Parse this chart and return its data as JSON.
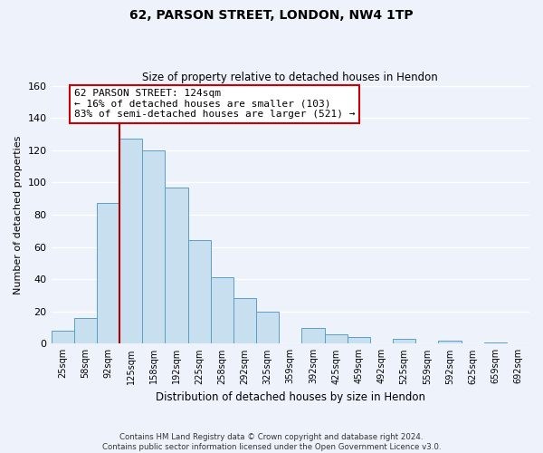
{
  "title": "62, PARSON STREET, LONDON, NW4 1TP",
  "subtitle": "Size of property relative to detached houses in Hendon",
  "xlabel": "Distribution of detached houses by size in Hendon",
  "ylabel": "Number of detached properties",
  "bar_labels": [
    "25sqm",
    "58sqm",
    "92sqm",
    "125sqm",
    "158sqm",
    "192sqm",
    "225sqm",
    "258sqm",
    "292sqm",
    "325sqm",
    "359sqm",
    "392sqm",
    "425sqm",
    "459sqm",
    "492sqm",
    "525sqm",
    "559sqm",
    "592sqm",
    "625sqm",
    "659sqm",
    "692sqm"
  ],
  "bar_values": [
    8,
    16,
    87,
    127,
    120,
    97,
    64,
    41,
    28,
    20,
    0,
    10,
    6,
    4,
    0,
    3,
    0,
    2,
    0,
    1,
    0
  ],
  "bar_color": "#c8dff0",
  "bar_edge_color": "#5a9ec9",
  "ylim": [
    0,
    160
  ],
  "yticks": [
    0,
    20,
    40,
    60,
    80,
    100,
    120,
    140,
    160
  ],
  "property_line_color": "#aa0000",
  "annotation_text": "62 PARSON STREET: 124sqm\n← 16% of detached houses are smaller (103)\n83% of semi-detached houses are larger (521) →",
  "annotation_box_color": "#ffffff",
  "annotation_box_edge": "#cc0000",
  "footer_line1": "Contains HM Land Registry data © Crown copyright and database right 2024.",
  "footer_line2": "Contains public sector information licensed under the Open Government Licence v3.0.",
  "bg_color": "#eef2fb",
  "grid_color": "#ffffff",
  "title_fontsize": 10,
  "subtitle_fontsize": 8.5
}
